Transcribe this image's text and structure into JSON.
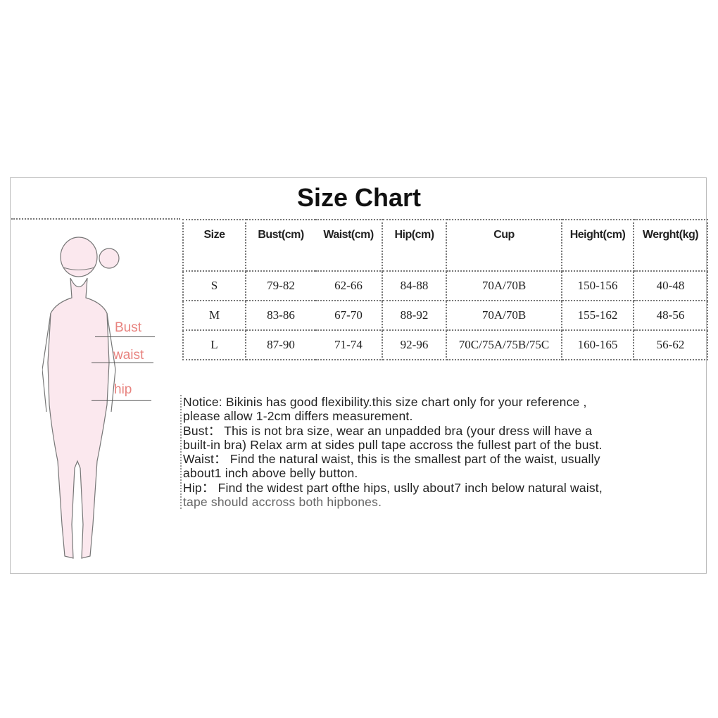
{
  "title": "Size Chart",
  "figure_labels": {
    "bust": "Bust",
    "waist": "waist",
    "hip": "hip"
  },
  "colors": {
    "label": "#e8837f",
    "figure_fill": "#fbe8ee"
  },
  "table": {
    "headers": [
      "Size",
      "Bust(cm)",
      "Waist(cm)",
      "Hip(cm)",
      "Cup",
      "Height(cm)",
      "Werght(kg)"
    ],
    "rows": [
      [
        "S",
        "79-82",
        "62-66",
        "84-88",
        "70A/70B",
        "150-156",
        "40-48"
      ],
      [
        "M",
        "83-86",
        "67-70",
        "88-92",
        "70A/70B",
        "155-162",
        "48-56"
      ],
      [
        "L",
        "87-90",
        "71-74",
        "92-96",
        "70C/75A/75B/75C",
        "160-165",
        "56-62"
      ]
    ]
  },
  "notes": [
    "Notice: Bikinis has good flexibility.this size chart only for your reference ,",
    "please allow 1-2cm differs measurement.",
    "Bust： This is not bra size, wear an unpadded bra (your dress will have a",
    "built-in bra) Relax arm at sides pull tape accross the fullest part of the bust.",
    "Waist：  Find the natural waist, this is the smallest part of the waist, usually",
    "about1 inch above belly button.",
    "Hip： Find the widest part  ofthe hips, uslly about7 inch below natural waist,",
    "tape should accross both hipbones."
  ]
}
